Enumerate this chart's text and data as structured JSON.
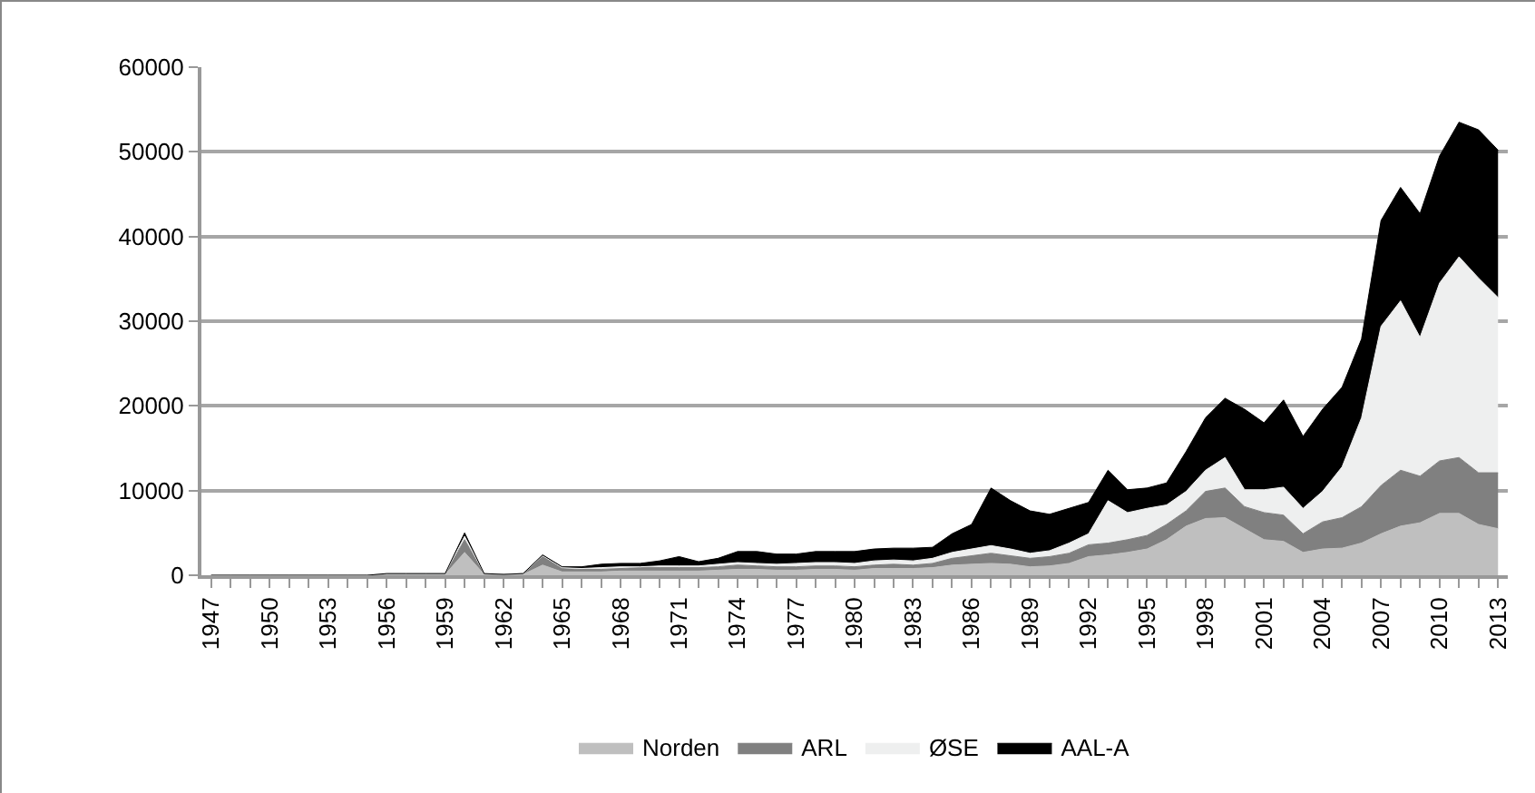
{
  "chart_data": {
    "type": "area",
    "stacked": true,
    "categories": [
      "1947",
      null,
      null,
      "1950",
      null,
      null,
      "1953",
      null,
      null,
      "1956",
      null,
      null,
      "1959",
      null,
      null,
      "1962",
      null,
      null,
      "1965",
      null,
      null,
      "1968",
      null,
      null,
      "1971",
      null,
      null,
      "1974",
      null,
      null,
      "1977",
      null,
      null,
      "1980",
      null,
      null,
      "1983",
      null,
      null,
      "1986",
      null,
      null,
      "1989",
      null,
      null,
      "1992",
      null,
      null,
      "1995",
      null,
      null,
      "1998",
      null,
      null,
      "2001",
      null,
      null,
      "2004",
      null,
      null,
      "2007",
      null,
      null,
      "2010",
      null,
      null,
      "2013"
    ],
    "series": [
      {
        "name": "Norden",
        "color": "#bfbfbf",
        "values": [
          0,
          0,
          0,
          0,
          0,
          0,
          0,
          0,
          0,
          100,
          100,
          100,
          100,
          2700,
          100,
          100,
          100,
          1200,
          400,
          400,
          400,
          500,
          500,
          500,
          500,
          500,
          600,
          700,
          700,
          600,
          600,
          700,
          700,
          600,
          800,
          800,
          800,
          900,
          1200,
          1300,
          1400,
          1300,
          1000,
          1100,
          1400,
          2200,
          2400,
          2700,
          3100,
          4200,
          5800,
          6700,
          6800,
          5500,
          4200,
          4000,
          2700,
          3100,
          3200,
          3800,
          4900,
          5800,
          6200,
          7300,
          7300,
          6000,
          5500
        ]
      },
      {
        "name": "ARL",
        "color": "#808080",
        "values": [
          0,
          0,
          0,
          0,
          0,
          0,
          0,
          0,
          0,
          50,
          50,
          50,
          50,
          1500,
          50,
          0,
          100,
          1100,
          400,
          300,
          300,
          300,
          400,
          400,
          400,
          400,
          400,
          500,
          400,
          400,
          400,
          400,
          400,
          400,
          400,
          500,
          400,
          500,
          800,
          1000,
          1200,
          1000,
          1000,
          1100,
          1200,
          1400,
          1400,
          1500,
          1600,
          1800,
          1800,
          3200,
          3500,
          2600,
          3200,
          3100,
          2200,
          3200,
          3600,
          4300,
          5700,
          6600,
          5500,
          6200,
          6600,
          6100,
          6600
        ]
      },
      {
        "name": "ØSE",
        "color": "#eeefef",
        "values": [
          0,
          0,
          0,
          0,
          0,
          0,
          0,
          0,
          0,
          50,
          50,
          50,
          50,
          400,
          50,
          0,
          0,
          0,
          100,
          100,
          200,
          200,
          100,
          200,
          200,
          200,
          300,
          300,
          300,
          300,
          400,
          400,
          400,
          400,
          500,
          500,
          500,
          600,
          700,
          800,
          900,
          800,
          600,
          700,
          1200,
          1300,
          5000,
          3200,
          3200,
          2300,
          2300,
          2500,
          3600,
          2000,
          2700,
          3300,
          3000,
          3600,
          6000,
          10500,
          18800,
          20000,
          16400,
          21000,
          23700,
          23000,
          20700
        ]
      },
      {
        "name": "AAL-A",
        "color": "#000000",
        "values": [
          0,
          0,
          0,
          0,
          0,
          0,
          0,
          0,
          0,
          0,
          0,
          0,
          0,
          400,
          0,
          0,
          0,
          100,
          100,
          200,
          400,
          400,
          400,
          600,
          1100,
          500,
          700,
          1300,
          1400,
          1200,
          1100,
          1300,
          1300,
          1400,
          1400,
          1400,
          1500,
          1300,
          2200,
          2900,
          6800,
          5700,
          5000,
          4300,
          4100,
          3700,
          3600,
          2700,
          2400,
          2600,
          4700,
          6200,
          7000,
          9500,
          7900,
          10300,
          8500,
          9700,
          9400,
          9300,
          12500,
          13400,
          14600,
          15000,
          15900,
          17500,
          17400
        ]
      }
    ],
    "ylim": [
      0,
      60000
    ],
    "yticks": [
      0,
      10000,
      20000,
      30000,
      40000,
      50000,
      60000
    ],
    "grid": "y",
    "legend": "bottom"
  }
}
